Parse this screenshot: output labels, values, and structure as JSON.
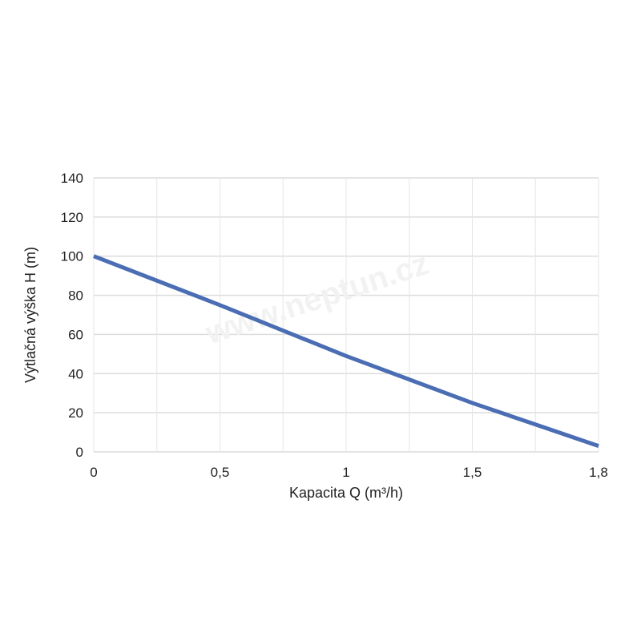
{
  "chart_data": {
    "type": "line",
    "title": "",
    "xlabel": "Kapacita Q (m³/h)",
    "ylabel": "Výtlačná výška H (m)",
    "categories": [
      "0",
      "",
      "0,5",
      "",
      "1",
      "",
      "1,5",
      "",
      "1,8"
    ],
    "series": [
      {
        "name": "H",
        "color": "#4a6db3",
        "values": [
          100,
          87.5,
          75,
          62,
          49,
          37,
          25,
          14,
          3
        ]
      }
    ],
    "yticks": [
      0,
      20,
      40,
      60,
      80,
      100,
      120,
      140
    ],
    "ylim": [
      0,
      140
    ],
    "grid": true,
    "legend": "none",
    "watermark": "www.neptun.cz"
  }
}
